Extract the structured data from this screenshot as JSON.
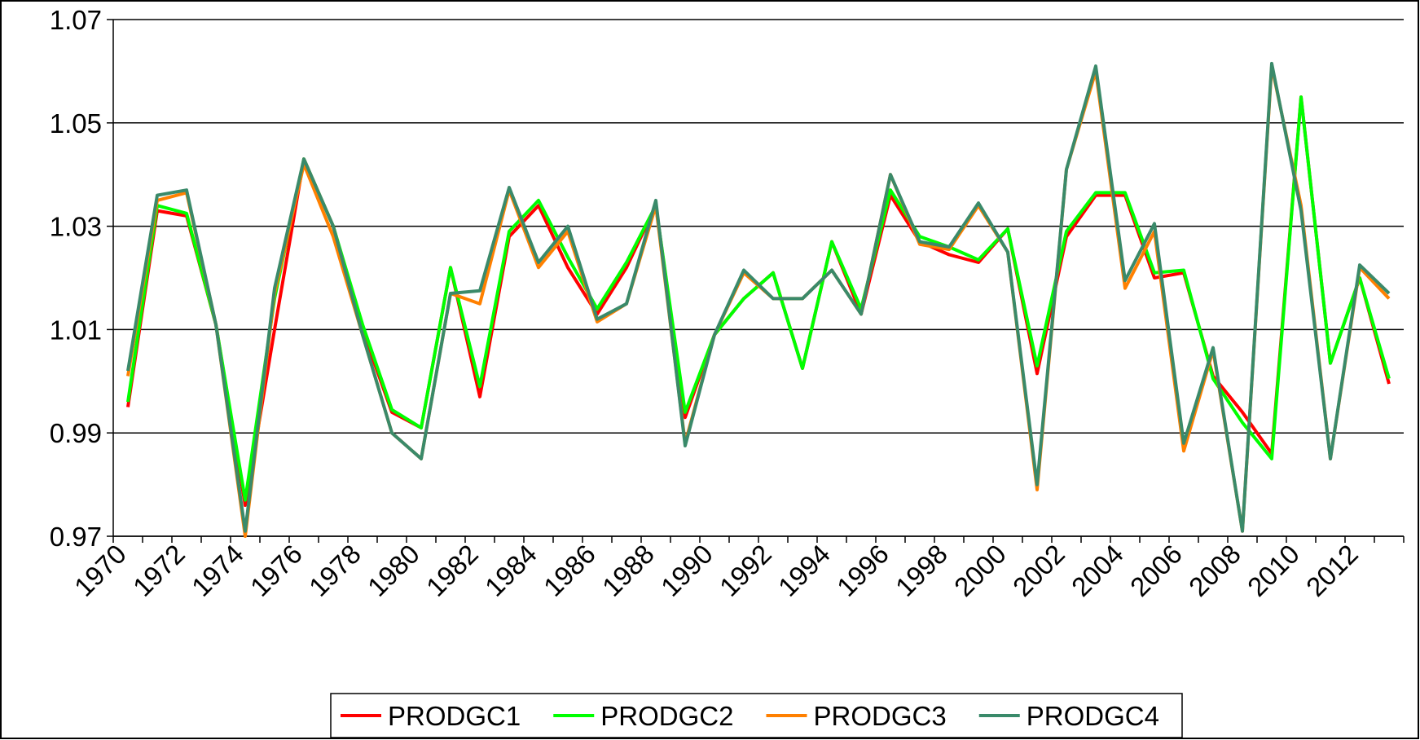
{
  "chart_data": {
    "type": "line",
    "categories": [
      "1970",
      null,
      "1972",
      null,
      "1974",
      null,
      "1976",
      null,
      "1978",
      null,
      "1980",
      null,
      "1982",
      null,
      "1984",
      null,
      "1986",
      null,
      "1988",
      null,
      "1990",
      null,
      "1992",
      null,
      "1994",
      null,
      "1996",
      null,
      "1998",
      null,
      "2000",
      null,
      "2002",
      null,
      "2004",
      null,
      "2006",
      null,
      "2008",
      null,
      "2010",
      null,
      "2012",
      null
    ],
    "series": [
      {
        "name": "PRODGC1",
        "color": "#ff0000",
        "values": [
          0.995,
          1.033,
          1.032,
          1.011,
          0.976,
          1.01,
          1.043,
          1.03,
          1.01,
          0.994,
          0.991,
          1.022,
          0.997,
          1.028,
          1.034,
          1.022,
          1.013,
          1.022,
          1.034,
          0.993,
          1.009,
          1.016,
          1.021,
          1.0025,
          1.027,
          1.013,
          1.036,
          1.027,
          1.0245,
          1.023,
          1.0295,
          1.0015,
          1.028,
          1.036,
          1.036,
          1.02,
          1.021,
          1.001,
          0.994,
          0.986,
          1.055,
          1.0035,
          1.02,
          0.9995
        ]
      },
      {
        "name": "PRODGC2",
        "color": "#00ff00",
        "values": [
          0.996,
          1.034,
          1.0325,
          1.011,
          0.977,
          1.016,
          1.043,
          1.03,
          1.011,
          0.9945,
          0.991,
          1.022,
          0.999,
          1.029,
          1.035,
          1.024,
          1.014,
          1.023,
          1.034,
          0.994,
          1.009,
          1.016,
          1.021,
          1.0025,
          1.027,
          1.014,
          1.037,
          1.028,
          1.026,
          1.0235,
          1.0295,
          1.003,
          1.029,
          1.0365,
          1.0365,
          1.021,
          1.0215,
          1.0005,
          0.992,
          0.985,
          1.055,
          1.0035,
          1.02,
          1.0005
        ]
      },
      {
        "name": "PRODGC3",
        "color": "#ff8000",
        "values": [
          1.001,
          1.035,
          1.0365,
          1.011,
          0.97,
          1.017,
          1.042,
          1.028,
          1.009,
          0.99,
          0.985,
          1.017,
          1.015,
          1.037,
          1.022,
          1.029,
          1.0115,
          1.015,
          1.034,
          0.988,
          1.009,
          1.021,
          1.016,
          1.016,
          1.0215,
          1.013,
          1.04,
          1.0265,
          1.0255,
          1.034,
          1.025,
          0.979,
          1.041,
          1.06,
          1.018,
          1.029,
          0.9865,
          1.006,
          0.971,
          1.061,
          1.034,
          0.985,
          1.022,
          1.016
        ]
      },
      {
        "name": "PRODGC4",
        "color": "#3a8a6a",
        "values": [
          1.002,
          1.036,
          1.037,
          1.011,
          0.971,
          1.018,
          1.043,
          1.03,
          1.009,
          0.99,
          0.985,
          1.017,
          1.0175,
          1.0375,
          1.023,
          1.03,
          1.012,
          1.015,
          1.035,
          0.9875,
          1.009,
          1.0215,
          1.016,
          1.016,
          1.0215,
          1.013,
          1.04,
          1.027,
          1.026,
          1.0345,
          1.025,
          0.98,
          1.041,
          1.061,
          1.0195,
          1.0305,
          0.988,
          1.0065,
          0.971,
          1.0615,
          1.033,
          0.985,
          1.0225,
          1.017
        ]
      }
    ],
    "ylim": [
      0.97,
      1.07
    ],
    "yticks": [
      0.97,
      0.99,
      1.01,
      1.03,
      1.05,
      1.07
    ],
    "grid": true,
    "legend": "bottom"
  }
}
